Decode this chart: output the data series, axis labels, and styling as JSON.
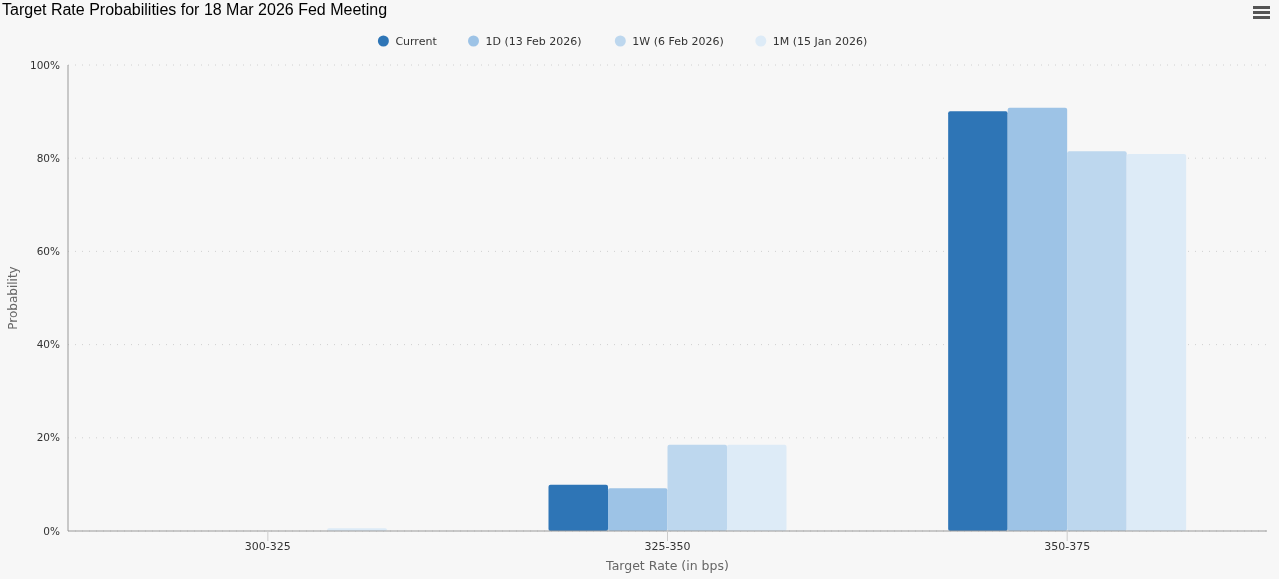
{
  "chart_data": {
    "type": "bar",
    "title": "Target Rate Probabilities for 18 Mar 2026 Fed Meeting",
    "xlabel": "Target Rate (in bps)",
    "ylabel": "Probability",
    "categories": [
      "300-325",
      "325-350",
      "350-375"
    ],
    "series": [
      {
        "name": "Current",
        "color": "#2e75b6",
        "values": [
          0,
          9.9,
          90.1
        ]
      },
      {
        "name": "1D (13 Feb 2026)",
        "color": "#9dc3e6",
        "values": [
          0,
          9.2,
          90.8
        ]
      },
      {
        "name": "1W (6 Feb 2026)",
        "color": "#bdd7ee",
        "values": [
          0,
          18.5,
          81.5
        ]
      },
      {
        "name": "1M (15 Jan 2026)",
        "color": "#ddebf7",
        "values": [
          0.6,
          18.5,
          80.9
        ]
      }
    ],
    "ylim": [
      0,
      100
    ],
    "yticks": [
      {
        "value": 0,
        "label": "0%"
      },
      {
        "value": 20,
        "label": "20%"
      },
      {
        "value": 40,
        "label": "40%"
      },
      {
        "value": 60,
        "label": "60%"
      },
      {
        "value": 80,
        "label": "80%"
      },
      {
        "value": 100,
        "label": "100%"
      }
    ],
    "grid": "y",
    "legend": "top"
  }
}
